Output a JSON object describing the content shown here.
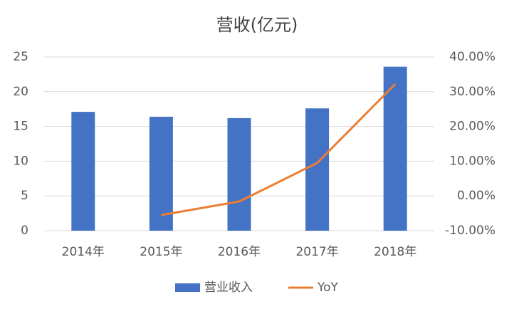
{
  "chart_data": {
    "type": "bar",
    "title": "营收(亿元)",
    "categories": [
      "2014年",
      "2015年",
      "2016年",
      "2017年",
      "2018年"
    ],
    "series": [
      {
        "name": "营业收入",
        "color": "#4472c4",
        "values": [
          17.1,
          16.4,
          16.2,
          17.6,
          23.6
        ]
      },
      {
        "name": "YoY",
        "color": "#ed7d31",
        "type": "line",
        "axis": "y2",
        "values": [
          null,
          -5.5,
          -1.6,
          9.5,
          32.2
        ]
      }
    ],
    "ylim": [
      0,
      25
    ],
    "yticks": [
      0,
      5,
      10,
      15,
      20,
      25
    ],
    "y2lim": [
      -10,
      40
    ],
    "y2ticks": [
      {
        "value": -10,
        "label": "-10.00%"
      },
      {
        "value": 0,
        "label": "0.00%"
      },
      {
        "value": 10,
        "label": "10.00%"
      },
      {
        "value": 20,
        "label": "20.00%"
      },
      {
        "value": 30,
        "label": "30.00%"
      },
      {
        "value": 40,
        "label": "40.00%"
      }
    ],
    "grid": true,
    "legend": "bottom"
  }
}
